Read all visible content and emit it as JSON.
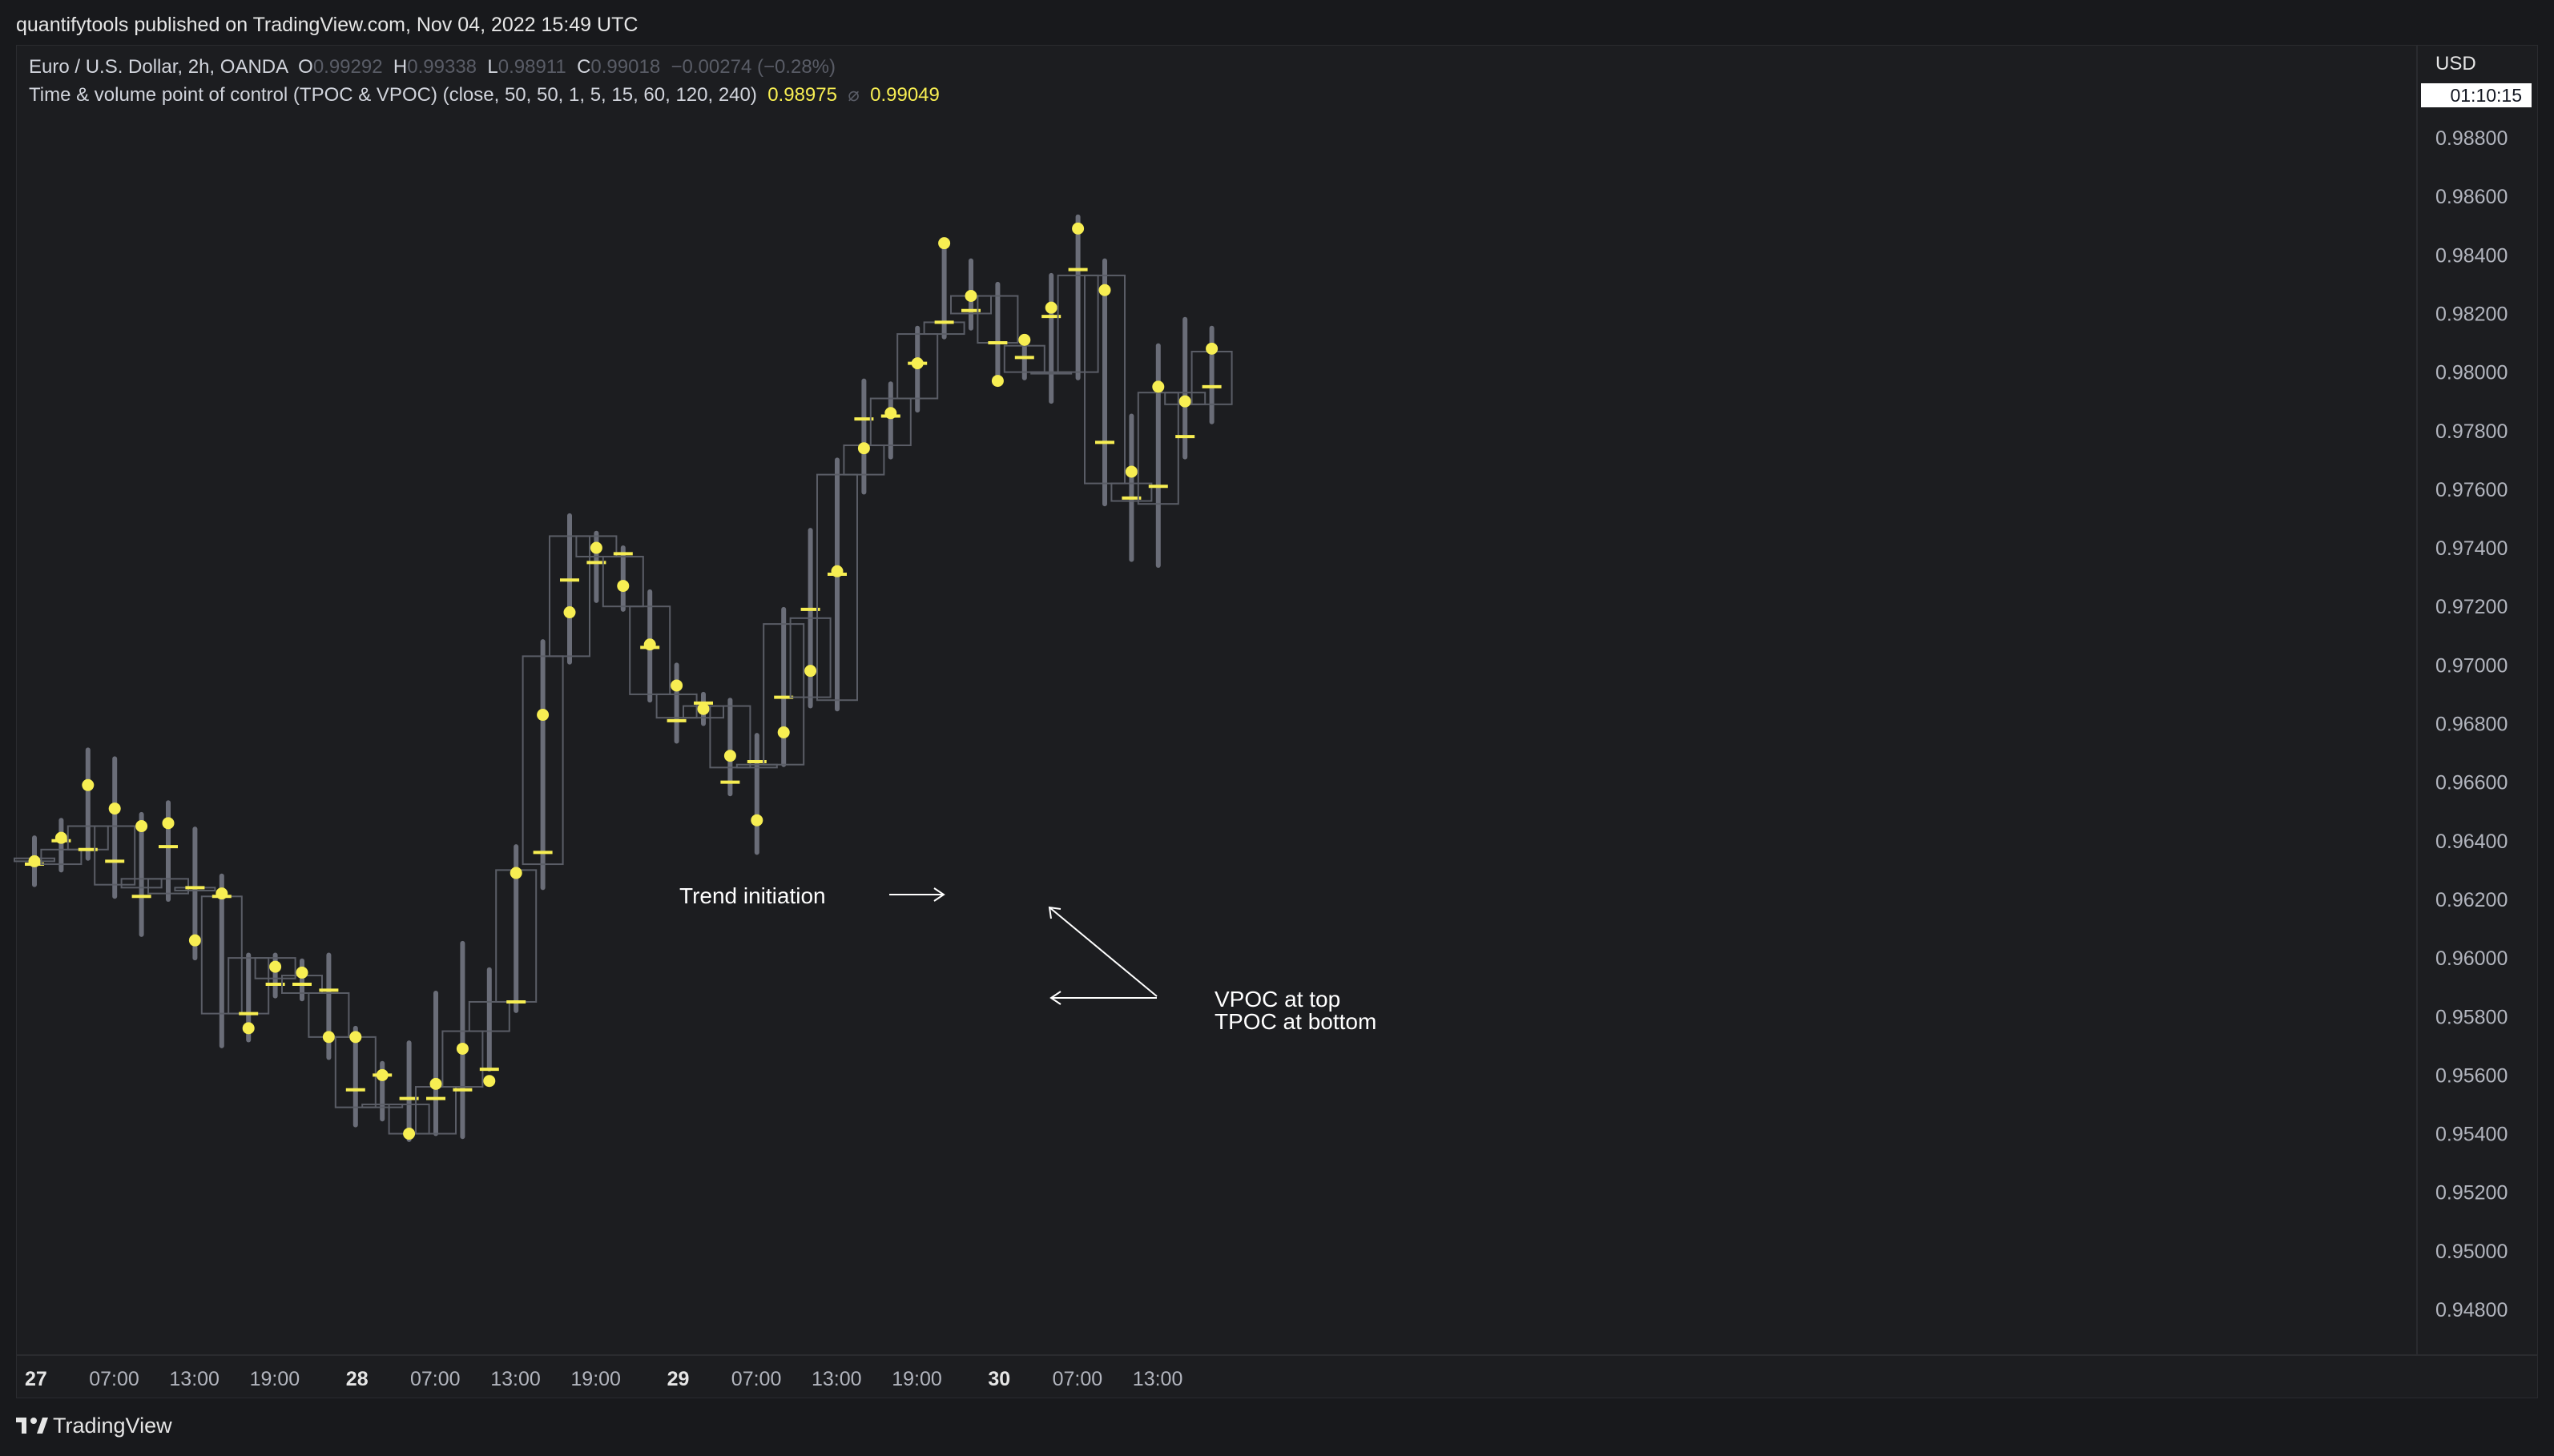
{
  "header": {
    "publisher_line": "quantifytools published on TradingView.com, Nov 04, 2022 15:49 UTC"
  },
  "legend": {
    "symbol": "Euro / U.S. Dollar, 2h, OANDA",
    "o_label": "O",
    "o_value": "0.99292",
    "h_label": "H",
    "h_value": "0.99338",
    "l_label": "L",
    "l_value": "0.98911",
    "c_label": "C",
    "c_value": "0.99018",
    "change": "−0.00274 (−0.28%)",
    "indicator": "Time & volume point of control (TPOC & VPOC) (close, 50, 50, 1, 5, 15, 60, 120, 240)",
    "indicator_value_1": "0.98975",
    "indicator_symbol": "⌀",
    "indicator_value_2": "0.99049"
  },
  "price_axis": {
    "currency": "USD",
    "countdown": "01:10:15"
  },
  "footer": {
    "brand": "TradingView"
  },
  "chart_data": {
    "type": "candlestick",
    "interval": "2h",
    "ylim": [
      0.9465,
      0.9892
    ],
    "y_ticks": [
      "0.98800",
      "0.98600",
      "0.98400",
      "0.98200",
      "0.98000",
      "0.97800",
      "0.97600",
      "0.97400",
      "0.97200",
      "0.97000",
      "0.96800",
      "0.96600",
      "0.96400",
      "0.96200",
      "0.96000",
      "0.95800",
      "0.95600",
      "0.95400",
      "0.95200",
      "0.95000",
      "0.94800"
    ],
    "x_ticks": [
      {
        "label": "27",
        "bold": true,
        "bar": 0
      },
      {
        "label": "07:00",
        "bold": false,
        "bar": 3
      },
      {
        "label": "13:00",
        "bold": false,
        "bar": 6
      },
      {
        "label": "19:00",
        "bold": false,
        "bar": 9
      },
      {
        "label": "28",
        "bold": true,
        "bar": 12
      },
      {
        "label": "07:00",
        "bold": false,
        "bar": 15
      },
      {
        "label": "13:00",
        "bold": false,
        "bar": 18
      },
      {
        "label": "19:00",
        "bold": false,
        "bar": 21
      },
      {
        "label": "29",
        "bold": true,
        "bar": 24
      },
      {
        "label": "07:00",
        "bold": false,
        "bar": 27
      },
      {
        "label": "13:00",
        "bold": false,
        "bar": 30
      },
      {
        "label": "19:00",
        "bold": false,
        "bar": 33
      },
      {
        "label": "30",
        "bold": true,
        "bar": 36
      },
      {
        "label": "07:00",
        "bold": false,
        "bar": 39
      },
      {
        "label": "13:00",
        "bold": false,
        "bar": 42
      }
    ],
    "bars": [
      {
        "o": 0.9633,
        "h": 0.9641,
        "l": 0.9625,
        "c": 0.9634,
        "vpoc": 0.9633,
        "tpoc": 0.9632
      },
      {
        "o": 0.9632,
        "h": 0.9647,
        "l": 0.963,
        "c": 0.9637,
        "vpoc": 0.9641,
        "tpoc": 0.964
      },
      {
        "o": 0.9637,
        "h": 0.9671,
        "l": 0.9634,
        "c": 0.9645,
        "vpoc": 0.9659,
        "tpoc": 0.9637
      },
      {
        "o": 0.9645,
        "h": 0.9668,
        "l": 0.9621,
        "c": 0.9625,
        "vpoc": 0.9651,
        "tpoc": 0.9633
      },
      {
        "o": 0.9627,
        "h": 0.9649,
        "l": 0.9608,
        "c": 0.9624,
        "vpoc": 0.9645,
        "tpoc": 0.9621
      },
      {
        "o": 0.9622,
        "h": 0.9653,
        "l": 0.962,
        "c": 0.9627,
        "vpoc": 0.9646,
        "tpoc": 0.9638
      },
      {
        "o": 0.9624,
        "h": 0.9644,
        "l": 0.96,
        "c": 0.9623,
        "vpoc": 0.9606,
        "tpoc": 0.9624
      },
      {
        "o": 0.9621,
        "h": 0.9628,
        "l": 0.957,
        "c": 0.9581,
        "vpoc": 0.9622,
        "tpoc": 0.9621
      },
      {
        "o": 0.9581,
        "h": 0.9601,
        "l": 0.9572,
        "c": 0.96,
        "vpoc": 0.9576,
        "tpoc": 0.9581
      },
      {
        "o": 0.96,
        "h": 0.9601,
        "l": 0.9587,
        "c": 0.9593,
        "vpoc": 0.9597,
        "tpoc": 0.9591
      },
      {
        "o": 0.9594,
        "h": 0.9599,
        "l": 0.9586,
        "c": 0.9588,
        "vpoc": 0.9595,
        "tpoc": 0.9591
      },
      {
        "o": 0.9588,
        "h": 0.9601,
        "l": 0.9566,
        "c": 0.9573,
        "vpoc": 0.9573,
        "tpoc": 0.9589
      },
      {
        "o": 0.9573,
        "h": 0.9576,
        "l": 0.9543,
        "c": 0.9549,
        "vpoc": 0.9573,
        "tpoc": 0.9555
      },
      {
        "o": 0.9549,
        "h": 0.9564,
        "l": 0.9545,
        "c": 0.955,
        "vpoc": 0.956,
        "tpoc": 0.956
      },
      {
        "o": 0.955,
        "h": 0.9571,
        "l": 0.9538,
        "c": 0.954,
        "vpoc": 0.954,
        "tpoc": 0.9552
      },
      {
        "o": 0.954,
        "h": 0.9588,
        "l": 0.954,
        "c": 0.9556,
        "vpoc": 0.9557,
        "tpoc": 0.9552
      },
      {
        "o": 0.9556,
        "h": 0.9605,
        "l": 0.9539,
        "c": 0.9575,
        "vpoc": 0.9569,
        "tpoc": 0.9555
      },
      {
        "o": 0.9575,
        "h": 0.9596,
        "l": 0.9562,
        "c": 0.9585,
        "vpoc": 0.9558,
        "tpoc": 0.9562
      },
      {
        "o": 0.9585,
        "h": 0.9638,
        "l": 0.9582,
        "c": 0.963,
        "vpoc": 0.9629,
        "tpoc": 0.9585
      },
      {
        "o": 0.9632,
        "h": 0.9708,
        "l": 0.9624,
        "c": 0.9703,
        "vpoc": 0.9683,
        "tpoc": 0.9636
      },
      {
        "o": 0.9703,
        "h": 0.9751,
        "l": 0.9701,
        "c": 0.9744,
        "vpoc": 0.9718,
        "tpoc": 0.9729
      },
      {
        "o": 0.9744,
        "h": 0.9745,
        "l": 0.9722,
        "c": 0.9737,
        "vpoc": 0.974,
        "tpoc": 0.9735
      },
      {
        "o": 0.9737,
        "h": 0.974,
        "l": 0.9719,
        "c": 0.972,
        "vpoc": 0.9727,
        "tpoc": 0.9738
      },
      {
        "o": 0.972,
        "h": 0.9725,
        "l": 0.9688,
        "c": 0.969,
        "vpoc": 0.9707,
        "tpoc": 0.9706
      },
      {
        "o": 0.969,
        "h": 0.97,
        "l": 0.9674,
        "c": 0.9682,
        "vpoc": 0.9693,
        "tpoc": 0.9681
      },
      {
        "o": 0.9682,
        "h": 0.969,
        "l": 0.968,
        "c": 0.9686,
        "vpoc": 0.9685,
        "tpoc": 0.9687
      },
      {
        "o": 0.9686,
        "h": 0.9688,
        "l": 0.9656,
        "c": 0.9665,
        "vpoc": 0.9669,
        "tpoc": 0.966
      },
      {
        "o": 0.9665,
        "h": 0.9676,
        "l": 0.9636,
        "c": 0.9666,
        "vpoc": 0.9647,
        "tpoc": 0.9667
      },
      {
        "o": 0.9666,
        "h": 0.9719,
        "l": 0.9666,
        "c": 0.9714,
        "vpoc": 0.9677,
        "tpoc": 0.9689
      },
      {
        "o": 0.9689,
        "h": 0.9746,
        "l": 0.9686,
        "c": 0.9716,
        "vpoc": 0.9698,
        "tpoc": 0.9719
      },
      {
        "o": 0.9688,
        "h": 0.977,
        "l": 0.9685,
        "c": 0.9765,
        "vpoc": 0.9732,
        "tpoc": 0.9731
      },
      {
        "o": 0.9765,
        "h": 0.9797,
        "l": 0.9759,
        "c": 0.9775,
        "vpoc": 0.9774,
        "tpoc": 0.9784
      },
      {
        "o": 0.9775,
        "h": 0.9796,
        "l": 0.9771,
        "c": 0.9791,
        "vpoc": 0.9786,
        "tpoc": 0.9785
      },
      {
        "o": 0.9791,
        "h": 0.9815,
        "l": 0.9787,
        "c": 0.9813,
        "vpoc": 0.9803,
        "tpoc": 0.9803
      },
      {
        "o": 0.9813,
        "h": 0.9845,
        "l": 0.9812,
        "c": 0.9817,
        "vpoc": 0.9844,
        "tpoc": 0.9817
      },
      {
        "o": 0.982,
        "h": 0.9838,
        "l": 0.9815,
        "c": 0.9826,
        "vpoc": 0.9826,
        "tpoc": 0.9821
      },
      {
        "o": 0.9826,
        "h": 0.983,
        "l": 0.9797,
        "c": 0.981,
        "vpoc": 0.9797,
        "tpoc": 0.981
      },
      {
        "o": 0.9809,
        "h": 0.9812,
        "l": 0.9798,
        "c": 0.98,
        "vpoc": 0.9811,
        "tpoc": 0.9805
      },
      {
        "o": 0.98,
        "h": 0.9833,
        "l": 0.979,
        "c": 0.98,
        "vpoc": 0.9822,
        "tpoc": 0.9819
      },
      {
        "o": 0.98,
        "h": 0.9853,
        "l": 0.9798,
        "c": 0.9833,
        "vpoc": 0.9849,
        "tpoc": 0.9835
      },
      {
        "o": 0.9833,
        "h": 0.9838,
        "l": 0.9755,
        "c": 0.9762,
        "vpoc": 0.9828,
        "tpoc": 0.9776
      },
      {
        "o": 0.9762,
        "h": 0.9785,
        "l": 0.9736,
        "c": 0.9756,
        "vpoc": 0.9766,
        "tpoc": 0.9757
      },
      {
        "o": 0.9755,
        "h": 0.9809,
        "l": 0.9734,
        "c": 0.9793,
        "vpoc": 0.9795,
        "tpoc": 0.9761
      },
      {
        "o": 0.9793,
        "h": 0.9818,
        "l": 0.9771,
        "c": 0.9789,
        "vpoc": 0.979,
        "tpoc": 0.9778
      },
      {
        "o": 0.9789,
        "h": 0.9815,
        "l": 0.9783,
        "c": 0.9807,
        "vpoc": 0.9808,
        "tpoc": 0.9795
      }
    ],
    "annotations": [
      {
        "name": "annotation-trend-initiation",
        "lines": [
          "Trend initiation"
        ]
      },
      {
        "name": "annotation-vpoc-tpoc",
        "lines": [
          "VPOC at top",
          "TPOC at bottom"
        ]
      }
    ]
  }
}
